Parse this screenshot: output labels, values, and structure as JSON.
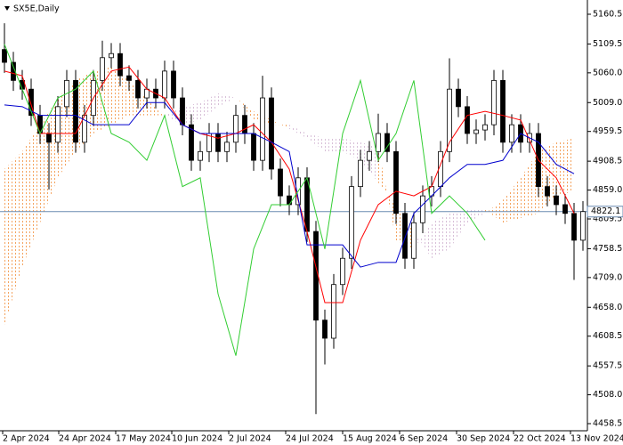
{
  "chart_data": {
    "type": "candlestick",
    "title": "SX5E,Daily",
    "xlim": [
      -0.5,
      65.5
    ],
    "xticks": [
      {
        "value": -0.2,
        "label": "2 Apr 2024"
      },
      {
        "value": 6.1,
        "label": "24 Apr 2024"
      },
      {
        "value": 12.5,
        "label": "17 May 2024"
      },
      {
        "value": 18.8,
        "label": "10 Jun 2024"
      },
      {
        "value": 25.2,
        "label": "2 Jul 2024"
      },
      {
        "value": 31.6,
        "label": "24 Jul 2024"
      },
      {
        "value": 38,
        "label": "15 Aug 2024"
      },
      {
        "value": 44.4,
        "label": "6 Sep 2024"
      },
      {
        "value": 50.8,
        "label": "30 Sep 2024"
      },
      {
        "value": 57.2,
        "label": "22 Oct 2024"
      },
      {
        "value": 63.6,
        "label": "13 Nov 2024"
      }
    ],
    "ylim": [
      4446.3,
      5184.9
    ],
    "yticks": [
      5160.5,
      5109.5,
      {
        "value": 5060,
        "label": "5060.0"
      },
      {
        "value": 5009,
        "label": "5009.0"
      },
      4959.5,
      4908.5,
      {
        "value": 4859,
        "label": "4859.0"
      },
      4809.5,
      4758.5,
      {
        "value": 4709,
        "label": "4709.0"
      },
      {
        "value": 4658,
        "label": "4658.0"
      },
      4608.5,
      4557.5,
      {
        "value": 4508,
        "label": "4508.0"
      },
      4458.5
    ],
    "last_price": 4822.1,
    "last_price_color": "#6a8bb0",
    "candles": {
      "up_color": "#ffffff",
      "down_color": "#000000",
      "edge_color": "#000000",
      "open": [
        5100,
        5078,
        5047,
        5032,
        4987,
        4956,
        4941,
        5002,
        5047,
        4941,
        4987,
        5047,
        5086,
        5093,
        5055,
        5047,
        5017,
        5032,
        5017,
        5063,
        5017,
        4971,
        4910,
        4925,
        4956,
        4925,
        4941,
        4987,
        4956,
        4910,
        5017,
        4895,
        4849,
        4834,
        4880,
        4788,
        4636,
        4605,
        4697,
        4742,
        4865,
        4910,
        4925,
        4956,
        4925,
        4819,
        4742,
        4803,
        4849,
        4865,
        4925,
        5032,
        5002,
        4956,
        4962,
        4971,
        5047,
        4941,
        4971,
        4941,
        4956,
        4865,
        4849,
        4834,
        4819,
        4773
      ],
      "high": [
        5145,
        5096,
        5065,
        5050,
        5005,
        4974,
        5020,
        5065,
        5065,
        5005,
        5065,
        5115,
        5111,
        5111,
        5073,
        5065,
        5050,
        5050,
        5081,
        5081,
        5035,
        4989,
        4943,
        4974,
        4974,
        4959,
        5005,
        5005,
        4974,
        5055,
        5035,
        4913,
        4867,
        4898,
        4898,
        4806,
        4654,
        4715,
        4760,
        4883,
        4928,
        4943,
        4990,
        4974,
        4943,
        4837,
        4821,
        4867,
        4883,
        4943,
        5085,
        5050,
        5020,
        4980,
        4989,
        5065,
        5065,
        4989,
        4989,
        4974,
        4974,
        4883,
        4867,
        4852,
        4837,
        4840
      ],
      "low": [
        5060,
        5029,
        5014,
        4969,
        4938,
        4860,
        4923,
        4984,
        4923,
        4923,
        4969,
        5029,
        5068,
        5037,
        5029,
        4999,
        4999,
        4999,
        4999,
        4999,
        4953,
        4892,
        4892,
        4907,
        4907,
        4907,
        4923,
        4938,
        4892,
        4892,
        4877,
        4831,
        4816,
        4816,
        4770,
        4475,
        4560,
        4587,
        4679,
        4724,
        4847,
        4892,
        4907,
        4907,
        4801,
        4724,
        4724,
        4785,
        4831,
        4847,
        4907,
        4984,
        4938,
        4938,
        4944,
        4953,
        4923,
        4923,
        4923,
        4923,
        4847,
        4831,
        4816,
        4801,
        4705,
        4755
      ],
      "close": [
        5078,
        5047,
        5032,
        4987,
        4956,
        4941,
        5002,
        5047,
        4941,
        4987,
        5047,
        5086,
        5093,
        5055,
        5047,
        5017,
        5032,
        5017,
        5063,
        5017,
        4971,
        4910,
        4925,
        4956,
        4925,
        4941,
        4987,
        4956,
        4910,
        5017,
        4895,
        4849,
        4834,
        4880,
        4788,
        4636,
        4605,
        4697,
        4742,
        4865,
        4910,
        4925,
        4956,
        4925,
        4819,
        4742,
        4803,
        4849,
        4865,
        4925,
        5032,
        5002,
        4956,
        4962,
        4971,
        5047,
        4941,
        4971,
        4941,
        4956,
        4865,
        4849,
        4834,
        4819,
        4773,
        4822.1
      ]
    },
    "cloud": {
      "x": [
        0,
        2,
        4,
        6,
        8,
        10,
        12,
        14,
        16,
        18,
        20,
        22,
        24,
        26,
        28,
        30,
        32,
        34,
        36,
        38,
        40,
        42,
        44,
        46,
        48,
        50,
        52,
        54,
        56,
        58,
        60,
        62,
        64
      ],
      "span_a": [
        4895,
        4925,
        4971,
        5017,
        5047,
        5063,
        5070,
        5047,
        5017,
        4987,
        4971,
        4979,
        5002,
        5017,
        4994,
        4979,
        4964,
        4948,
        4925,
        4925,
        4910,
        4872,
        4834,
        4788,
        4742,
        4758,
        4803,
        4819,
        4842,
        4880,
        4925,
        4941,
        4948
      ],
      "span_b": [
        4628,
        4727,
        4803,
        4880,
        4925,
        4956,
        4971,
        4987,
        4987,
        4987,
        5002,
        5009,
        5025,
        5017,
        4979,
        4971,
        4971,
        4956,
        4948,
        4948,
        4941,
        4933,
        4773,
        4758,
        4803,
        4819,
        4826,
        4826,
        4803,
        4811,
        4819,
        4849,
        4857
      ],
      "up_color": "#f4a460",
      "down_color": "#d8bfd8"
    },
    "lines": [
      {
        "color": "#ff0000",
        "x": [
          0,
          2,
          4,
          6,
          8,
          10,
          12,
          14,
          16,
          18,
          20,
          22,
          24,
          26,
          28,
          30,
          32,
          34,
          36,
          38,
          40,
          42,
          44,
          46,
          48,
          50,
          52,
          54,
          56,
          58,
          60,
          62,
          64
        ],
        "values": [
          5063,
          5055,
          4956,
          4956,
          4956,
          5017,
          5063,
          5070,
          5032,
          5017,
          4971,
          4956,
          4948,
          4956,
          4971,
          4941,
          4895,
          4788,
          4666,
          4666,
          4773,
          4834,
          4857,
          4849,
          4865,
          4941,
          4987,
          4994,
          4987,
          4979,
          4910,
          4880,
          4819
        ]
      },
      {
        "color": "#0000cd",
        "x": [
          0,
          2,
          4,
          6,
          8,
          10,
          12,
          14,
          16,
          18,
          20,
          22,
          24,
          26,
          28,
          30,
          32,
          34,
          36,
          38,
          40,
          42,
          44,
          46,
          48,
          50,
          52,
          54,
          56,
          58,
          60,
          62,
          64
        ],
        "values": [
          5005,
          5002,
          4987,
          4987,
          4987,
          4971,
          4971,
          4971,
          5009,
          5009,
          4971,
          4956,
          4956,
          4956,
          4956,
          4941,
          4925,
          4765,
          4765,
          4765,
          4727,
          4735,
          4735,
          4819,
          4849,
          4880,
          4903,
          4903,
          4910,
          4956,
          4941,
          4903,
          4887
        ]
      },
      {
        "color": "#32cd32",
        "x": [
          0,
          2,
          4,
          6,
          8,
          10,
          12,
          14,
          16,
          18,
          20,
          22,
          24,
          26,
          28,
          30,
          32,
          34,
          36,
          38,
          40,
          42,
          44,
          46,
          48,
          50,
          52,
          54,
          56,
          58,
          60,
          62,
          64
        ],
        "values": [
          5109,
          5032,
          4956,
          5017,
          5032,
          5063,
          4956,
          4941,
          4910,
          4987,
          4865,
          4880,
          4681,
          4575,
          4758,
          4834,
          4834,
          4880,
          4758,
          4956,
          5047,
          4910,
          4956,
          5047,
          4819,
          4849,
          4819,
          4773,
          null,
          null,
          null,
          null,
          null
        ]
      }
    ]
  }
}
